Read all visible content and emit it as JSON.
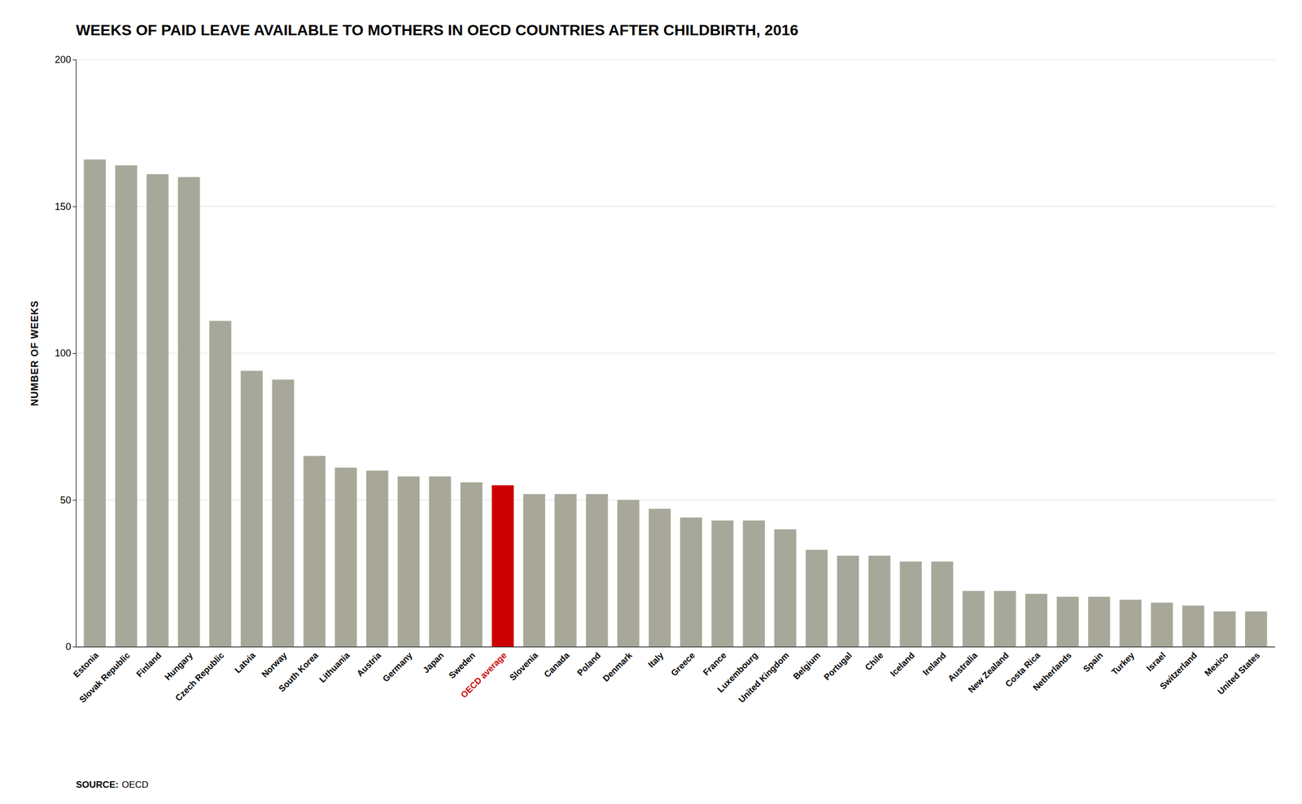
{
  "chart_data": {
    "type": "bar",
    "title": "WEEKS OF PAID LEAVE AVAILABLE TO MOTHERS IN OECD COUNTRIES AFTER CHILDBIRTH, 2016",
    "ylabel": "NUMBER OF WEEKS",
    "annotations": [
      "SOURCE:",
      "OECD"
    ],
    "categories": [
      "Estonia",
      "Slovak Republic",
      "Finland",
      "Hungary",
      "Czech Republic",
      "Latvia",
      "Norway",
      "South Korea",
      "Lithuania",
      "Austria",
      "Germany",
      "Japan",
      "Sweden",
      "OECD average",
      "Slovenia",
      "Canada",
      "Poland",
      "Denmark",
      "Italy",
      "Greece",
      "France",
      "Luxembourg",
      "United Kingdom",
      "Belgium",
      "Portugal",
      "Chile",
      "Iceland",
      "Ireland",
      "Australia",
      "New Zealand",
      "Costa Rica",
      "Netherlands",
      "Spain",
      "Turkey",
      "Israel",
      "Switzerland",
      "Mexico",
      "United States"
    ],
    "values": [
      166,
      164,
      161,
      160,
      111,
      94,
      91,
      65,
      61,
      60,
      58,
      58,
      56,
      55,
      52,
      52,
      52,
      50,
      47,
      44,
      43,
      43,
      40,
      33,
      31,
      31,
      29,
      29,
      19,
      19,
      18,
      17,
      17,
      16,
      15,
      14,
      12,
      12
    ],
    "colors": [
      "#a8a89a",
      "#a8a89a",
      "#a8a89a",
      "#a8a89a",
      "#a8a89a",
      "#a8a89a",
      "#a8a89a",
      "#a8a89a",
      "#a8a89a",
      "#a8a89a",
      "#a8a89a",
      "#a8a89a",
      "#a8a89a",
      "#cc0000",
      "#a8a89a",
      "#a8a89a",
      "#a8a89a",
      "#a8a89a",
      "#a8a89a",
      "#a8a89a",
      "#a8a89a",
      "#a8a89a",
      "#a8a89a",
      "#a8a89a",
      "#a8a89a",
      "#a8a89a",
      "#a8a89a",
      "#a8a89a",
      "#a8a89a",
      "#a8a89a",
      "#a8a89a",
      "#a8a89a",
      "#a8a89a",
      "#a8a89a",
      "#a8a89a",
      "#a8a89a",
      "#a8a89a",
      "#a8a89a"
    ],
    "ylim": [
      0,
      200
    ],
    "yticks": [
      0,
      50,
      100,
      150,
      200
    ],
    "grid": true
  }
}
